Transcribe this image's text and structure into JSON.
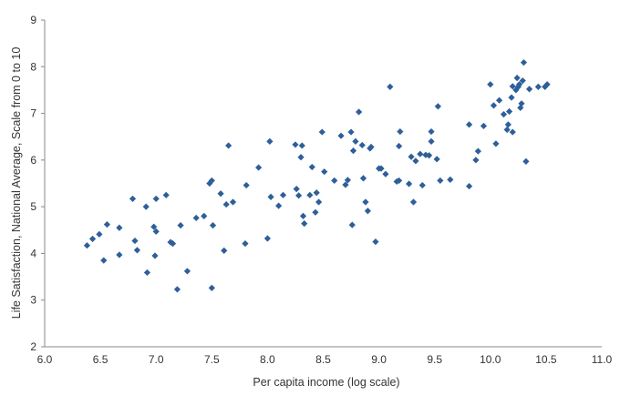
{
  "chart_data": {
    "type": "scatter",
    "title": "",
    "xlabel": "Per capita income (log scale)",
    "ylabel": "Life Satisfaction, National Average, Scale from 0 to 10",
    "xlim": [
      6.0,
      11.0
    ],
    "ylim": [
      2,
      9
    ],
    "x_ticks": [
      "6.0",
      "6.5",
      "7.0",
      "7.5",
      "8.0",
      "8.5",
      "9.0",
      "9.5",
      "10.0",
      "10.5",
      "11.0"
    ],
    "y_ticks": [
      "2",
      "3",
      "4",
      "5",
      "6",
      "7",
      "8",
      "9"
    ],
    "grid": false,
    "legend": "none",
    "marker": "diamond",
    "color": "#2E5F9A",
    "points": [
      [
        6.38,
        4.17
      ],
      [
        6.43,
        4.31
      ],
      [
        6.49,
        4.41
      ],
      [
        6.53,
        3.85
      ],
      [
        6.56,
        4.62
      ],
      [
        6.67,
        3.97
      ],
      [
        6.67,
        4.55
      ],
      [
        6.79,
        5.17
      ],
      [
        6.81,
        4.27
      ],
      [
        6.83,
        4.07
      ],
      [
        6.91,
        5.0
      ],
      [
        6.92,
        3.59
      ],
      [
        6.98,
        4.57
      ],
      [
        6.99,
        3.95
      ],
      [
        7.0,
        4.47
      ],
      [
        7.0,
        5.17
      ],
      [
        7.09,
        5.25
      ],
      [
        7.13,
        4.24
      ],
      [
        7.15,
        4.21
      ],
      [
        7.19,
        3.23
      ],
      [
        7.22,
        4.6
      ],
      [
        7.28,
        3.62
      ],
      [
        7.36,
        4.76
      ],
      [
        7.43,
        4.8
      ],
      [
        7.48,
        5.5
      ],
      [
        7.5,
        5.56
      ],
      [
        7.51,
        4.6
      ],
      [
        7.5,
        3.26
      ],
      [
        7.58,
        5.28
      ],
      [
        7.61,
        4.06
      ],
      [
        7.63,
        5.05
      ],
      [
        7.65,
        6.31
      ],
      [
        7.69,
        5.1
      ],
      [
        7.8,
        4.21
      ],
      [
        7.81,
        5.46
      ],
      [
        7.92,
        5.84
      ],
      [
        8.0,
        4.32
      ],
      [
        8.02,
        6.4
      ],
      [
        8.03,
        5.21
      ],
      [
        8.1,
        5.02
      ],
      [
        8.14,
        5.25
      ],
      [
        8.25,
        6.33
      ],
      [
        8.26,
        5.38
      ],
      [
        8.28,
        5.24
      ],
      [
        8.3,
        6.06
      ],
      [
        8.31,
        6.31
      ],
      [
        8.33,
        4.64
      ],
      [
        8.32,
        4.8
      ],
      [
        8.38,
        5.25
      ],
      [
        8.4,
        5.85
      ],
      [
        8.43,
        4.88
      ],
      [
        8.44,
        5.3
      ],
      [
        8.46,
        5.1
      ],
      [
        8.49,
        6.6
      ],
      [
        8.51,
        5.75
      ],
      [
        8.6,
        5.56
      ],
      [
        8.66,
        6.52
      ],
      [
        8.7,
        5.47
      ],
      [
        8.72,
        5.57
      ],
      [
        8.75,
        6.6
      ],
      [
        8.76,
        4.61
      ],
      [
        8.77,
        6.2
      ],
      [
        8.79,
        6.4
      ],
      [
        8.82,
        7.03
      ],
      [
        8.85,
        6.32
      ],
      [
        8.86,
        5.61
      ],
      [
        8.88,
        5.1
      ],
      [
        8.9,
        4.91
      ],
      [
        8.92,
        6.25
      ],
      [
        8.93,
        6.28
      ],
      [
        8.97,
        4.25
      ],
      [
        9.0,
        5.82
      ],
      [
        9.02,
        5.82
      ],
      [
        9.06,
        5.7
      ],
      [
        9.1,
        7.57
      ],
      [
        9.16,
        5.54
      ],
      [
        9.18,
        5.56
      ],
      [
        9.18,
        6.3
      ],
      [
        9.19,
        6.61
      ],
      [
        9.27,
        5.49
      ],
      [
        9.29,
        6.07
      ],
      [
        9.31,
        5.1
      ],
      [
        9.33,
        5.98
      ],
      [
        9.37,
        6.13
      ],
      [
        9.39,
        5.46
      ],
      [
        9.42,
        6.11
      ],
      [
        9.45,
        6.1
      ],
      [
        9.47,
        6.4
      ],
      [
        9.47,
        6.61
      ],
      [
        9.52,
        6.02
      ],
      [
        9.53,
        7.15
      ],
      [
        9.55,
        5.56
      ],
      [
        9.64,
        5.58
      ],
      [
        9.81,
        5.44
      ],
      [
        9.81,
        6.76
      ],
      [
        9.87,
        6.0
      ],
      [
        9.89,
        6.19
      ],
      [
        9.94,
        6.73
      ],
      [
        10.0,
        7.62
      ],
      [
        10.03,
        7.17
      ],
      [
        10.05,
        6.35
      ],
      [
        10.08,
        7.28
      ],
      [
        10.12,
        6.98
      ],
      [
        10.15,
        6.65
      ],
      [
        10.16,
        6.76
      ],
      [
        10.17,
        7.04
      ],
      [
        10.19,
        7.34
      ],
      [
        10.2,
        7.58
      ],
      [
        10.2,
        6.6
      ],
      [
        10.23,
        7.5
      ],
      [
        10.24,
        7.76
      ],
      [
        10.25,
        7.57
      ],
      [
        10.26,
        7.62
      ],
      [
        10.27,
        7.12
      ],
      [
        10.28,
        7.21
      ],
      [
        10.29,
        7.7
      ],
      [
        10.3,
        8.09
      ],
      [
        10.32,
        5.97
      ],
      [
        10.35,
        7.52
      ],
      [
        10.43,
        7.57
      ],
      [
        10.49,
        7.57
      ],
      [
        10.51,
        7.62
      ]
    ]
  }
}
